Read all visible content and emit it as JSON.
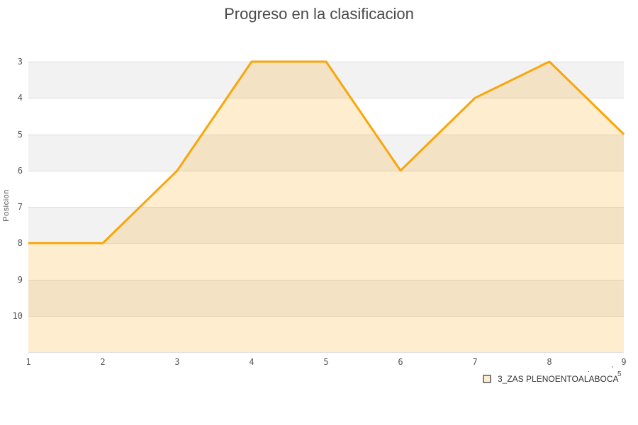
{
  "title": "Progreso en la clasificacion",
  "chart_data": {
    "type": "area",
    "title": "Progreso en la clasificacion",
    "xlabel": "",
    "ylabel": "Posicion",
    "x": [
      1,
      2,
      3,
      4,
      5,
      6,
      7,
      8,
      9
    ],
    "x_tick_labels": [
      "1",
      "2",
      "3",
      "4",
      "5",
      "6",
      "7",
      "8",
      "9"
    ],
    "y_tick_labels": [
      "3",
      "4",
      "5",
      "6",
      "7",
      "8",
      "9",
      "10"
    ],
    "y_ticks": [
      3,
      4,
      5,
      6,
      7,
      8,
      9,
      10
    ],
    "ylim": [
      3,
      11
    ],
    "y_axis_inverted": true,
    "grid": "horizontal",
    "legend_position": "bottom-right",
    "series": [
      {
        "name": "3_ZAS PLENOENTOALABOCA",
        "values": [
          8,
          8,
          6,
          3,
          3,
          6,
          4,
          3,
          5
        ],
        "color": "#f9a60a",
        "fill_opacity": 0.2
      }
    ],
    "colors": {
      "band_odd": "#f2f2f2",
      "band_even": "#ffffff",
      "gridline": "#dcdcdc",
      "tick_text": "#555555",
      "title_text": "#4a4a4a"
    }
  },
  "legend": {
    "items": [
      {
        "label": "3_ZAS PLENOENTOALABOCA",
        "swatch_fill": "#fdeece",
        "swatch_border": "#7f7f7f"
      }
    ]
  },
  "artifacts": {
    "fragments": [
      ".",
      "'",
      "5"
    ]
  }
}
